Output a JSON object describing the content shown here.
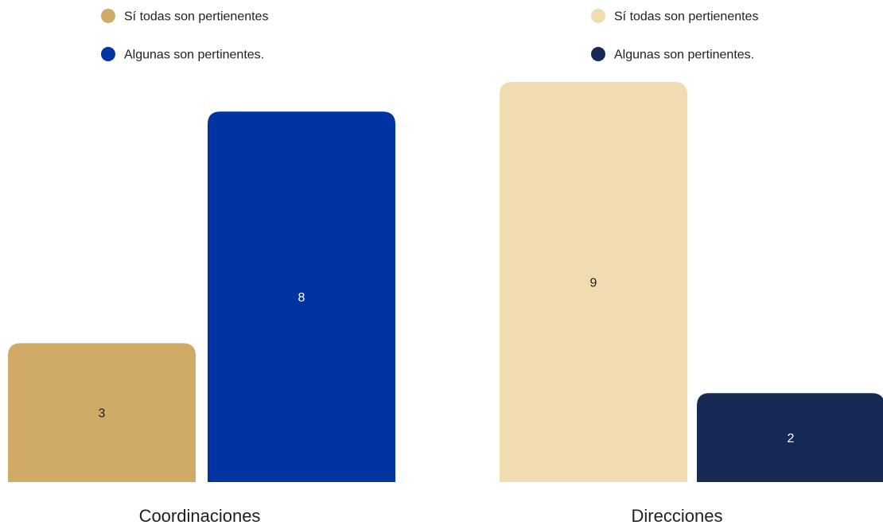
{
  "chart_data": [
    {
      "type": "bar",
      "categories": [
        "Coordinaciones"
      ],
      "series": [
        {
          "name": "Sí todas son pertienentes",
          "values": [
            3
          ],
          "color": "#CFAB67"
        },
        {
          "name": "Algunas son pertinentes.",
          "values": [
            8
          ],
          "color": "#0035A1"
        }
      ],
      "ylim": [
        0,
        8.64
      ],
      "grid": false,
      "legend": "top-left"
    },
    {
      "type": "bar",
      "categories": [
        "Direcciones"
      ],
      "series": [
        {
          "name": "Sí todas son pertienentes",
          "values": [
            9
          ],
          "color": "#F1DBB1"
        },
        {
          "name": "Algunas son pertinentes.",
          "values": [
            2
          ],
          "color": "#172955"
        }
      ],
      "ylim": [
        0,
        9.0
      ],
      "grid": false,
      "legend": "top-left"
    }
  ]
}
